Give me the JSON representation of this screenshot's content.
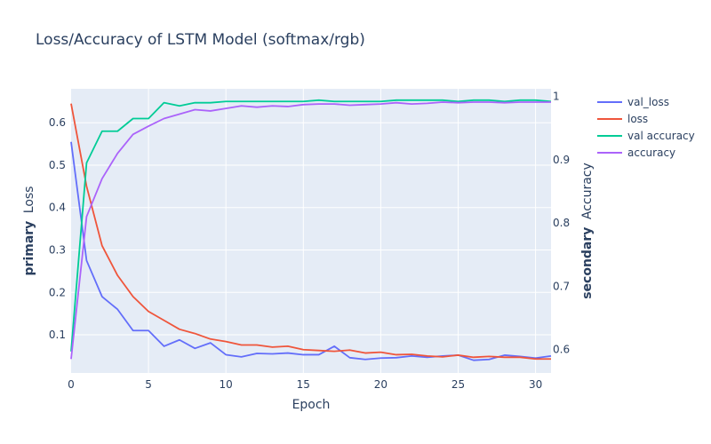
{
  "chart_data": {
    "type": "line",
    "title": "Loss/Accuracy of LSTM Model (softmax/rgb)",
    "xlabel": "Epoch",
    "ylabel_primary_bold": "primary",
    "ylabel_primary": "Loss",
    "ylabel_secondary_bold": "secondary",
    "ylabel_secondary": "Accuracy",
    "xlim": [
      0,
      31
    ],
    "ylim_primary": [
      0.01,
      0.68
    ],
    "ylim_secondary": [
      0.563,
      1.012
    ],
    "x_ticks": [
      0,
      5,
      10,
      15,
      20,
      25,
      30
    ],
    "y_ticks_primary": [
      0.1,
      0.2,
      0.3,
      0.4,
      0.5,
      0.6
    ],
    "y_ticks_secondary": [
      0.6,
      0.7,
      0.8,
      0.9,
      1
    ],
    "grid": true,
    "legend_position": "top-right",
    "x": [
      0,
      1,
      2,
      3,
      4,
      5,
      6,
      7,
      8,
      9,
      10,
      11,
      12,
      13,
      14,
      15,
      16,
      17,
      18,
      19,
      20,
      21,
      22,
      23,
      24,
      25,
      26,
      27,
      28,
      29,
      30,
      31
    ],
    "series": [
      {
        "name": "val_loss",
        "axis": "primary",
        "color": "#636efa",
        "values": [
          0.555,
          0.275,
          0.19,
          0.16,
          0.11,
          0.11,
          0.073,
          0.088,
          0.068,
          0.081,
          0.053,
          0.048,
          0.056,
          0.055,
          0.057,
          0.053,
          0.053,
          0.073,
          0.046,
          0.042,
          0.045,
          0.046,
          0.05,
          0.047,
          0.05,
          0.052,
          0.04,
          0.042,
          0.052,
          0.049,
          0.045,
          0.05
        ]
      },
      {
        "name": "loss",
        "axis": "primary",
        "color": "#ef553b",
        "values": [
          0.645,
          0.45,
          0.31,
          0.24,
          0.19,
          0.155,
          0.134,
          0.113,
          0.103,
          0.09,
          0.084,
          0.076,
          0.076,
          0.071,
          0.073,
          0.065,
          0.063,
          0.061,
          0.064,
          0.057,
          0.059,
          0.053,
          0.054,
          0.05,
          0.048,
          0.052,
          0.047,
          0.049,
          0.047,
          0.047,
          0.043,
          0.043
        ]
      },
      {
        "name": "val accuracy",
        "axis": "secondary",
        "color": "#00cc96",
        "values": [
          0.597,
          0.895,
          0.945,
          0.945,
          0.965,
          0.965,
          0.99,
          0.985,
          0.99,
          0.99,
          0.992,
          0.992,
          0.992,
          0.992,
          0.992,
          0.992,
          0.994,
          0.992,
          0.992,
          0.992,
          0.992,
          0.994,
          0.994,
          0.994,
          0.994,
          0.992,
          0.994,
          0.994,
          0.992,
          0.994,
          0.994,
          0.992
        ]
      },
      {
        "name": "accuracy",
        "axis": "secondary",
        "color": "#ab63fa",
        "values": [
          0.585,
          0.81,
          0.87,
          0.91,
          0.94,
          0.953,
          0.965,
          0.972,
          0.979,
          0.977,
          0.981,
          0.985,
          0.983,
          0.985,
          0.984,
          0.987,
          0.988,
          0.988,
          0.986,
          0.987,
          0.988,
          0.99,
          0.988,
          0.989,
          0.991,
          0.99,
          0.991,
          0.991,
          0.99,
          0.991,
          0.991,
          0.991
        ]
      }
    ]
  }
}
